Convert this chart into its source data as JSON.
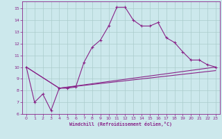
{
  "xlabel": "Windchill (Refroidissement éolien,°C)",
  "bg_color": "#cce8ec",
  "line_color": "#882288",
  "grid_color": "#aacccc",
  "xlim": [
    -0.5,
    23.5
  ],
  "ylim": [
    6,
    15.6
  ],
  "xticks": [
    0,
    1,
    2,
    3,
    4,
    5,
    6,
    7,
    8,
    9,
    10,
    11,
    12,
    13,
    14,
    15,
    16,
    17,
    18,
    19,
    20,
    21,
    22,
    23
  ],
  "yticks": [
    6,
    7,
    8,
    9,
    10,
    11,
    12,
    13,
    14,
    15
  ],
  "line1_x": [
    0,
    1,
    2,
    3,
    4,
    5,
    6,
    7,
    8,
    9,
    10,
    11,
    12,
    13,
    14,
    15,
    16,
    17,
    18,
    19,
    20,
    21,
    22,
    23
  ],
  "line1_y": [
    10.0,
    7.0,
    7.7,
    6.3,
    8.2,
    8.2,
    8.3,
    10.4,
    11.7,
    12.3,
    13.5,
    15.1,
    15.1,
    14.0,
    13.5,
    13.5,
    13.8,
    12.5,
    12.1,
    11.3,
    10.6,
    10.6,
    10.2,
    10.0
  ],
  "line2_x": [
    0,
    4,
    23
  ],
  "line2_y": [
    10.0,
    8.2,
    10.0
  ],
  "line3_x": [
    0,
    4,
    23
  ],
  "line3_y": [
    10.0,
    8.2,
    9.7
  ]
}
